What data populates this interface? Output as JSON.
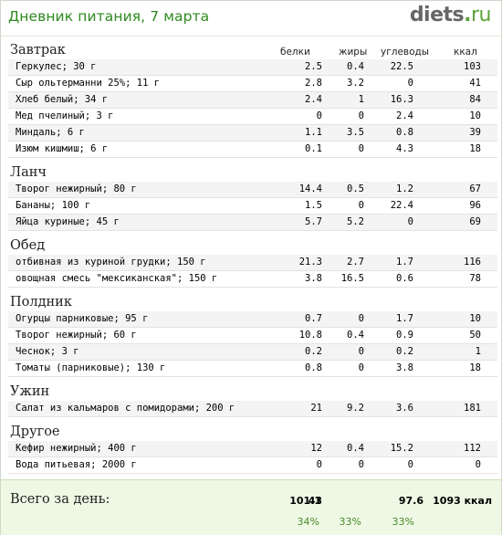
{
  "header": {
    "title": "Дневник питания, 7 марта",
    "logo_main": "diets",
    "logo_dot": ".",
    "logo_tld": "ru"
  },
  "columns": {
    "protein": "белки",
    "fat": "жиры",
    "carbs": "углеводы",
    "kcal": "ккал"
  },
  "sections": [
    {
      "title": "Завтрак",
      "items": [
        {
          "name": "Геркулес; 30 г",
          "b": "2.5",
          "z": "0.4",
          "u": "22.5",
          "k": "103"
        },
        {
          "name": "Сыр ольтерманни 25%; 11 г",
          "b": "2.8",
          "z": "3.2",
          "u": "0",
          "k": "41"
        },
        {
          "name": "Хлеб белый; 34 г",
          "b": "2.4",
          "z": "1",
          "u": "16.3",
          "k": "84"
        },
        {
          "name": "Мед пчелиный; 3 г",
          "b": "0",
          "z": "0",
          "u": "2.4",
          "k": "10"
        },
        {
          "name": "Миндаль; 6 г",
          "b": "1.1",
          "z": "3.5",
          "u": "0.8",
          "k": "39"
        },
        {
          "name": "Изюм кишмиш; 6 г",
          "b": "0.1",
          "z": "0",
          "u": "4.3",
          "k": "18"
        }
      ]
    },
    {
      "title": "Ланч",
      "items": [
        {
          "name": "Творог нежирный; 80 г",
          "b": "14.4",
          "z": "0.5",
          "u": "1.2",
          "k": "67"
        },
        {
          "name": "Бананы; 100 г",
          "b": "1.5",
          "z": "0",
          "u": "22.4",
          "k": "96"
        },
        {
          "name": "Яйца куриные; 45 г",
          "b": "5.7",
          "z": "5.2",
          "u": "0",
          "k": "69"
        }
      ]
    },
    {
      "title": "Обед",
      "items": [
        {
          "name": "отбивная из куриной грудки; 150 г",
          "b": "21.3",
          "z": "2.7",
          "u": "1.7",
          "k": "116"
        },
        {
          "name": "овощная смесь \"мексиканская\"; 150 г",
          "b": "3.8",
          "z": "16.5",
          "u": "0.6",
          "k": "78"
        }
      ]
    },
    {
      "title": "Полдник",
      "items": [
        {
          "name": "Огурцы парниковые; 95 г",
          "b": "0.7",
          "z": "0",
          "u": "1.7",
          "k": "10"
        },
        {
          "name": "Творог нежирный; 60 г",
          "b": "10.8",
          "z": "0.4",
          "u": "0.9",
          "k": "50"
        },
        {
          "name": "Чеснок; 3 г",
          "b": "0.2",
          "z": "0",
          "u": "0.2",
          "k": "1"
        },
        {
          "name": "Томаты (парниковые); 130 г",
          "b": "0.8",
          "z": "0",
          "u": "3.8",
          "k": "18"
        }
      ]
    },
    {
      "title": "Ужин",
      "items": [
        {
          "name": "Салат из кальмаров с помидорами; 200 г",
          "b": "21",
          "z": "9.2",
          "u": "3.6",
          "k": "181"
        }
      ]
    },
    {
      "title": "Другое",
      "items": [
        {
          "name": "Кефир нежирный; 400 г",
          "b": "12",
          "z": "0.4",
          "u": "15.2",
          "k": "112"
        },
        {
          "name": "Вода питьевая; 2000 г",
          "b": "0",
          "z": "0",
          "u": "0",
          "k": "0"
        }
      ]
    }
  ],
  "totals": {
    "label": "Всего за день:",
    "protein": "101.1",
    "fat": "43",
    "carbs": "97.6",
    "kcal": "1093 ккал",
    "protein_pct": "34%",
    "fat_pct": "33%",
    "carbs_pct": "33%"
  }
}
